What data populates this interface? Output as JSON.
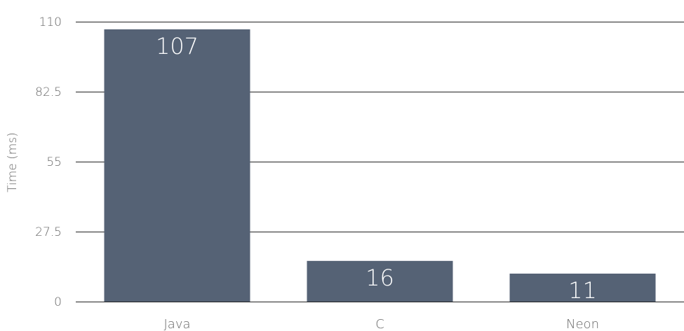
{
  "chart_data": {
    "type": "bar",
    "categories": [
      "Java",
      "C",
      "Neon"
    ],
    "values": [
      107,
      16,
      11
    ],
    "data_labels": [
      "107",
      "16",
      "11"
    ],
    "title": "",
    "xlabel": "",
    "ylabel": "Time (ms)",
    "ylim": [
      0,
      110
    ],
    "yticks": [
      0,
      27.5,
      55,
      82.5,
      110
    ],
    "ytick_labels": [
      "0",
      "27.5",
      "55",
      "82.5",
      "110"
    ],
    "grid": true,
    "legend": "none",
    "bar_color": "#556275",
    "label_color": "#ffffff",
    "text_color": "#666666"
  }
}
